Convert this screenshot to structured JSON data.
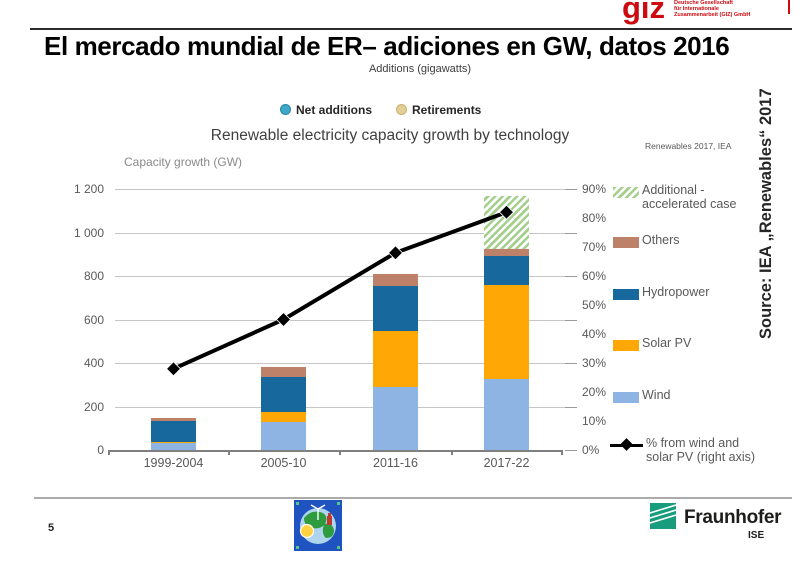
{
  "slide": {
    "title": "El mercado mundial de ER– adiciones en GW, datos 2016",
    "page_number": "5"
  },
  "logos": {
    "giz": {
      "short": "giz",
      "lines": [
        "Deutsche Gesellschaft",
        "für Internationale",
        "Zusammenarbeit (GIZ) GmbH"
      ],
      "color": "#cc0a0f"
    },
    "fraunhofer": {
      "name": "Fraunhofer",
      "sub": "ISE",
      "green": "#179c7d"
    }
  },
  "source_vertical": "Source: IEA „Renewables“ 2017",
  "chart_data": {
    "type": "bar",
    "subtype": "stacked-bar-with-line",
    "title": "Renewable electricity capacity growth by technology",
    "subtitle": "Additions (gigawatts)",
    "note": "Renewables 2017, IEA",
    "xlabel": "",
    "ylabel": "Capacity growth (GW)",
    "ylim": [
      0,
      1200
    ],
    "y2lim": [
      0,
      90
    ],
    "grid": true,
    "legend_position": "right",
    "top_legend": [
      {
        "label": "Net additions",
        "color": "#3ea8c8",
        "ring": "#2b86a6"
      },
      {
        "label": "Retirements",
        "color": "#e3cf97",
        "ring": "#c9b070"
      }
    ],
    "categories": [
      "1999-2004",
      "2005-10",
      "2011-16",
      "2017-22"
    ],
    "series": [
      {
        "name": "Wind",
        "color": "#8eb4e3",
        "values": [
          30,
          130,
          290,
          325
        ]
      },
      {
        "name": "Solar PV",
        "color": "#ffa805",
        "values": [
          5,
          45,
          255,
          435
        ]
      },
      {
        "name": "Hydropower",
        "color": "#16689d",
        "values": [
          100,
          160,
          210,
          130
        ]
      },
      {
        "name": "Others",
        "color": "#bc8168",
        "values": [
          10,
          45,
          55,
          35
        ]
      },
      {
        "name": "Additional - accelerated case",
        "color": "hatch",
        "values": [
          0,
          0,
          0,
          245
        ]
      }
    ],
    "line_series": {
      "name": "% from wind and solar PV (right axis)",
      "color": "#000000",
      "values": [
        28,
        45,
        68,
        82
      ]
    },
    "left_axis": {
      "ticks": [
        "0",
        "200",
        "400",
        "600",
        "800",
        "1 000",
        "1 200"
      ],
      "max": 1200
    },
    "right_axis": {
      "ticks": [
        "0%",
        "10%",
        "20%",
        "30%",
        "40%",
        "50%",
        "60%",
        "70%",
        "80%",
        "90%"
      ],
      "max": 90
    },
    "legend": [
      {
        "lines": [
          "Additional -",
          "accelerated  case"
        ],
        "swatch": "hatch"
      },
      {
        "lines": [
          "Others"
        ],
        "swatch": "#bc8168"
      },
      {
        "lines": [
          "Hydropower"
        ],
        "swatch": "#16689d"
      },
      {
        "lines": [
          "Solar PV"
        ],
        "swatch": "#ffa805"
      },
      {
        "lines": [
          "Wind"
        ],
        "swatch": "#8eb4e3"
      },
      {
        "lines": [
          "% from wind and",
          "solar PV (right axis)"
        ],
        "swatch": "line"
      }
    ]
  }
}
